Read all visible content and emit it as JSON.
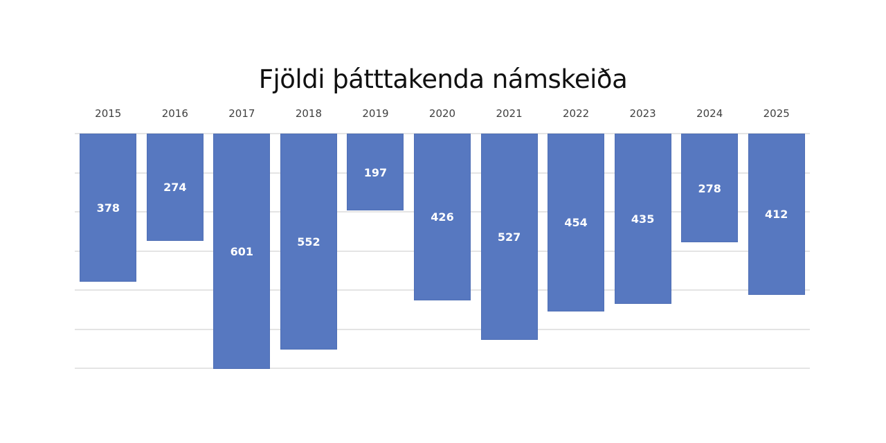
{
  "chart_data": {
    "type": "bar",
    "title": "Fjöldi þátttakenda námskeiða",
    "orientation": "vertical-inverted",
    "categories": [
      "2015",
      "2016",
      "2017",
      "2018",
      "2019",
      "2020",
      "2021",
      "2022",
      "2023",
      "2024",
      "2025"
    ],
    "values": [
      378,
      274,
      601,
      552,
      197,
      426,
      527,
      454,
      435,
      278,
      412
    ],
    "xlabel": "",
    "ylabel": "",
    "ylim": [
      0,
      600
    ],
    "gridlines": [
      0,
      100,
      200,
      300,
      400,
      500,
      600
    ],
    "grid": true,
    "legend": "none",
    "data_labels": true,
    "bar_color": "#5778c0",
    "x_axis_position": "top"
  }
}
